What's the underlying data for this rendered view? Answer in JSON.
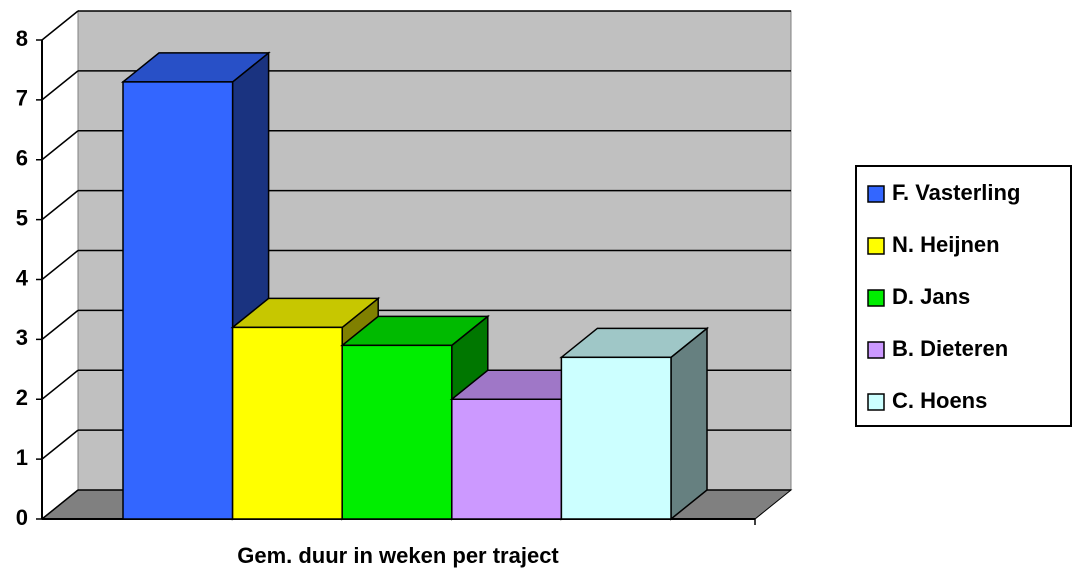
{
  "chart_data": {
    "type": "bar3d",
    "x_label": "Gem. duur in weken per traject",
    "categories": [
      null
    ],
    "series": [
      {
        "name": "F. Vasterling",
        "color": "#3366ff",
        "values": [
          7.3
        ]
      },
      {
        "name": "N. Heijnen",
        "color": "#ffff00",
        "values": [
          3.2
        ]
      },
      {
        "name": "D. Jans",
        "color": "#00ee00",
        "values": [
          2.9
        ]
      },
      {
        "name": "B. Dieteren",
        "color": "#cc99ff",
        "values": [
          2.0
        ]
      },
      {
        "name": "C. Hoens",
        "color": "#ccffff",
        "values": [
          2.7
        ]
      }
    ],
    "ylim": [
      0,
      8
    ],
    "yticks": [
      0,
      1,
      2,
      3,
      4,
      5,
      6,
      7,
      8
    ],
    "grid": true,
    "legend": "right"
  }
}
